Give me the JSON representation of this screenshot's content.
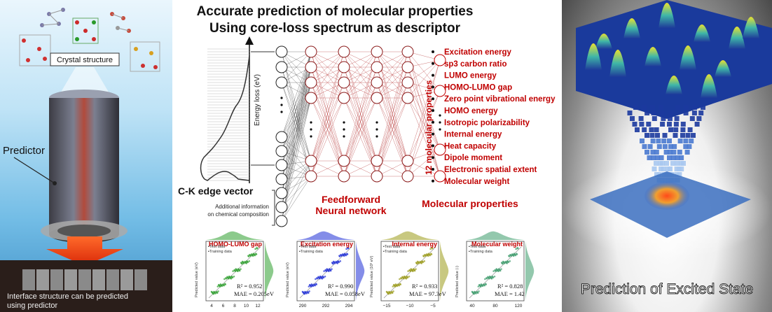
{
  "left": {
    "crystal_label": "Crystal structure",
    "predictor_label": "Predictor",
    "caption": "Interface structure can be predicted using predictor"
  },
  "middle": {
    "title_line1": "Accurate prediction of molecular properties",
    "title_line2": "Using core-loss spectrum as descriptor",
    "energy_axis": "Energy loss (eV)",
    "edge_vector": "C-K edge vector",
    "additional_info_line1": "Additional information",
    "additional_info_line2": "on chemical composition",
    "nn_label_line1": "Feedforward",
    "nn_label_line2": "Neural network",
    "vertical_label": "12 molecular properties",
    "properties_label": "Molecular properties",
    "properties": [
      "Excitation energy",
      "sp3 carbon ratio",
      "LUMO energy",
      "HOMO-LUMO gap",
      "Zero point vibrational energy",
      "HOMO energy",
      "Isotropic polarizability",
      "Internal energy",
      "Heat capacity",
      "Dipole moment",
      "Electronic spatial extent",
      "Molecular weight"
    ],
    "plots": [
      {
        "title": "HOMO-LUMO gap",
        "r2": "R² = 0.952",
        "mae": "MAE = 0.205eV",
        "ylabel": "Predicted value (eV)",
        "color": "#2e9e2e",
        "xticks": [
          "4",
          "6",
          "8",
          "10",
          "12"
        ]
      },
      {
        "title": "Excitation energy",
        "r2": "R² = 0.990",
        "mae": "MAE = 0.058eV",
        "ylabel": "Predicted value (eV)",
        "color": "#1f2fd6",
        "xticks": [
          "290",
          "292",
          "294"
        ]
      },
      {
        "title": "Internal energy",
        "r2": "R² = 0.933",
        "mae": "MAE = 97.3eV",
        "ylabel": "Predicted value (10³ eV)",
        "color": "#9a9a18",
        "xticks": [
          "−15",
          "−10",
          "−5"
        ]
      },
      {
        "title": "Molecular weight",
        "r2": "R² = 0.828",
        "mae": "MAE = 1.42",
        "ylabel": "Predicted value (-)",
        "color": "#3a9a6a",
        "xticks": [
          "40",
          "80",
          "120"
        ]
      }
    ],
    "legend_test": "Test data",
    "legend_train": "Training data"
  },
  "right": {
    "caption": "Prediction of Excited State"
  }
}
